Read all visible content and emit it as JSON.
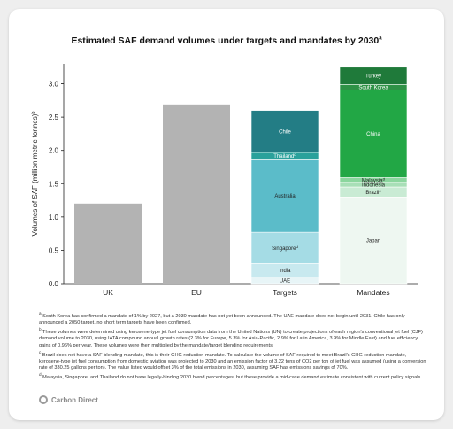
{
  "chart_data": {
    "type": "bar",
    "title": "Estimated SAF demand volumes under targets and mandates by 2030",
    "title_marker": "a",
    "ylabel": "Volumes of SAF (million metric tonnes)",
    "ylabel_marker": "b",
    "ylim": [
      0,
      3.3
    ],
    "yticks": [
      "0.0",
      "0.5",
      "1.0",
      "1.5",
      "2.0",
      "2.5",
      "3.0"
    ],
    "grid": false,
    "categories": [
      "UK",
      "EU",
      "Targets",
      "Mandates"
    ],
    "simple_bars": [
      {
        "category": "UK",
        "value": 1.2,
        "color": "#b3b3b3"
      },
      {
        "category": "EU",
        "value": 2.69,
        "color": "#b3b3b3"
      }
    ],
    "stacks": [
      {
        "category": "Targets",
        "segments": [
          {
            "label": "UAE",
            "value": 0.1,
            "color": "#e8f5f7"
          },
          {
            "label": "India",
            "value": 0.2,
            "color": "#c8e9ef"
          },
          {
            "label": "Singapore",
            "marker": "d",
            "value": 0.47,
            "color": "#a5dce5"
          },
          {
            "label": "Australia",
            "value": 1.1,
            "color": "#5bbcc9"
          },
          {
            "label": "Thailand",
            "marker": "d",
            "value": 0.1,
            "color": "#2aa19b"
          },
          {
            "label": "Chile",
            "value": 0.63,
            "color": "#237d85"
          }
        ]
      },
      {
        "category": "Mandates",
        "segments": [
          {
            "label": "Japan",
            "value": 1.3,
            "color": "#eef7f1"
          },
          {
            "label": "Brazil",
            "marker": "c",
            "value": 0.15,
            "color": "#c9ebd4"
          },
          {
            "label": "Indonesia",
            "value": 0.07,
            "color": "#a8dfb7"
          },
          {
            "label": "Malaysia",
            "marker": "d",
            "value": 0.07,
            "color": "#8bd69e"
          },
          {
            "label": "China",
            "value": 1.32,
            "color": "#22a745"
          },
          {
            "label": "South Korea",
            "value": 0.08,
            "color": "#2e9246"
          },
          {
            "label": "Turkey",
            "value": 0.26,
            "color": "#1f7a3a"
          }
        ]
      }
    ]
  },
  "footnotes": [
    {
      "marker": "a",
      "text": "South Korea has confirmed a mandate of 1% by 2027, but a 2030 mandate has not yet been announced. The UAE mandate does not begin until 2031. Chile has only announced a 2050 target, no short term targets have been confirmed."
    },
    {
      "marker": "b",
      "text": "These volumes were determined using kerosene-type jet fuel consumption data from the United Nations (UN) to create projections of each region's conventional jet fuel (CJF) demand volume to 2030, using IATA compound annual growth rates (2.3% for Europe, 5.3% for Asia-Pacific, 2.9% for Latin America, 3.9% for Middle East) and fuel efficiency gains of 0.96% per year. These volumes were then multiplied by the mandate/target blending requirements."
    },
    {
      "marker": "c",
      "text": "Brazil does not have a SAF blending mandate, this is their GHG reduction mandate. To calculate the volume of SAF required to meet Brazil's GHG reduction mandate, kerosene-type jet fuel consumption from domestic aviation was projected to 2030 and an emission factor of 3.22 tons of CO2 per ton of jet fuel was assumed (using a conversion rate of 330.25 gallons per ton). The value listed would offset 3% of the total emissions in 2030, assuming SAF has emissions savings of 70%."
    },
    {
      "marker": "d",
      "text": "Malaysia, Singapore, and Thailand do not have legally-binding 2030 blend percentages, but these provide a mid-case demand estimate consistent with current policy signals."
    }
  ],
  "logo": {
    "text": "Carbon Direct",
    "icon": "carbon-direct-logo-icon"
  }
}
